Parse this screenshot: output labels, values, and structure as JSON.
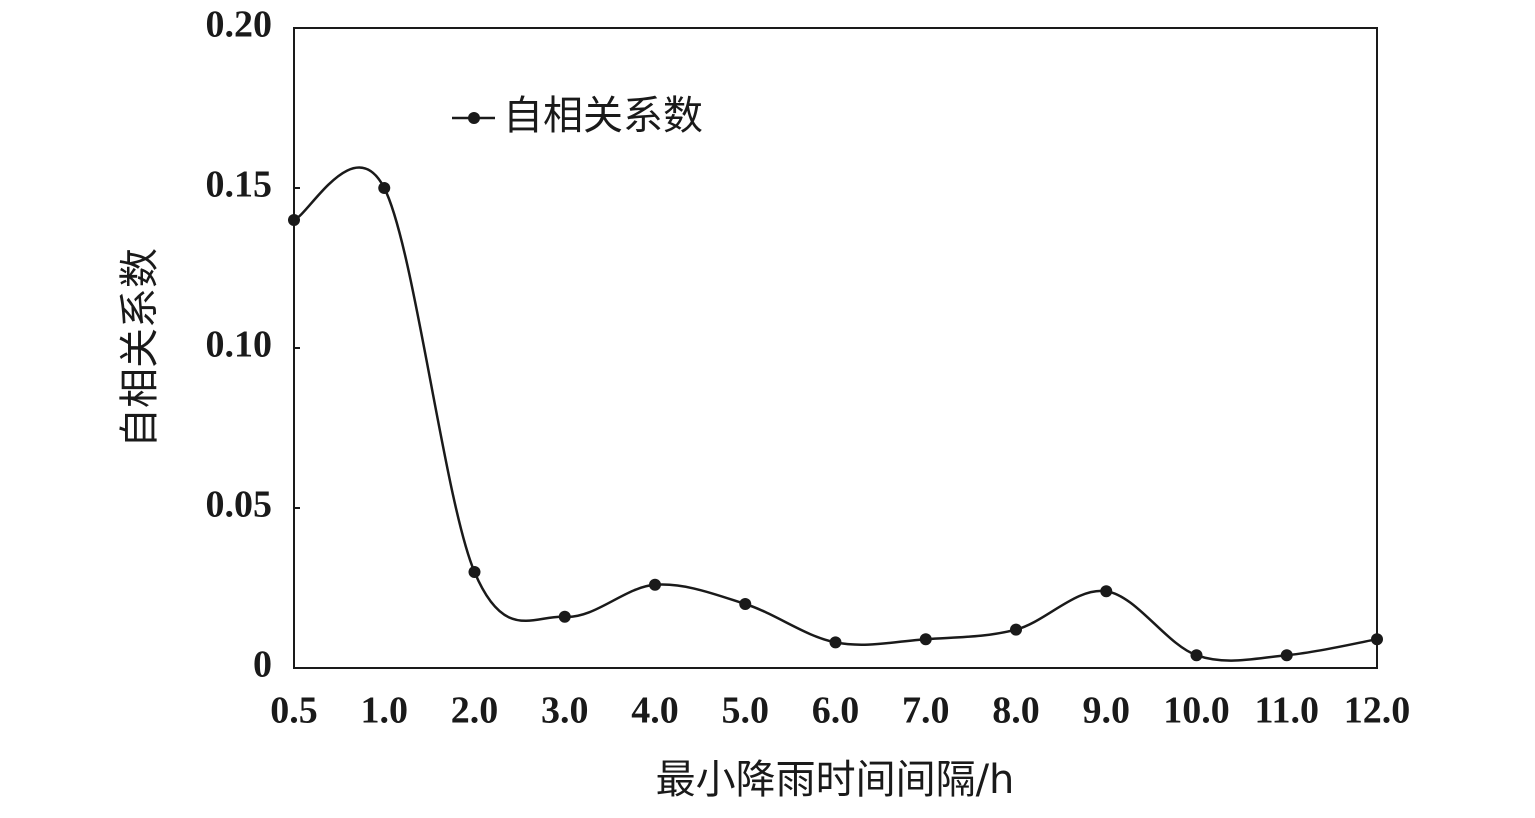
{
  "chart_data": {
    "type": "line",
    "x_label": "最小降雨时间间隔/h",
    "y_label": "自相关系数",
    "categories": [
      "0.5",
      "1.0",
      "2.0",
      "3.0",
      "4.0",
      "5.0",
      "6.0",
      "7.0",
      "8.0",
      "9.0",
      "10.0",
      "11.0",
      "12.0"
    ],
    "series": [
      {
        "name": "自相关系数",
        "color": "#1a1a1a",
        "values": [
          0.14,
          0.15,
          0.03,
          0.016,
          0.026,
          0.02,
          0.008,
          0.009,
          0.012,
          0.024,
          0.004,
          0.004,
          0.009
        ]
      }
    ],
    "ylim": [
      0,
      0.2
    ],
    "yticks": [
      0,
      {
        "value": 0.05,
        "label": "0.05"
      },
      {
        "value": 0.1,
        "label": "0.10"
      },
      {
        "value": 0.15,
        "label": "0.15"
      },
      {
        "value": 0.2,
        "label": "0.20"
      }
    ],
    "smooth": true,
    "legend": "top-left"
  }
}
